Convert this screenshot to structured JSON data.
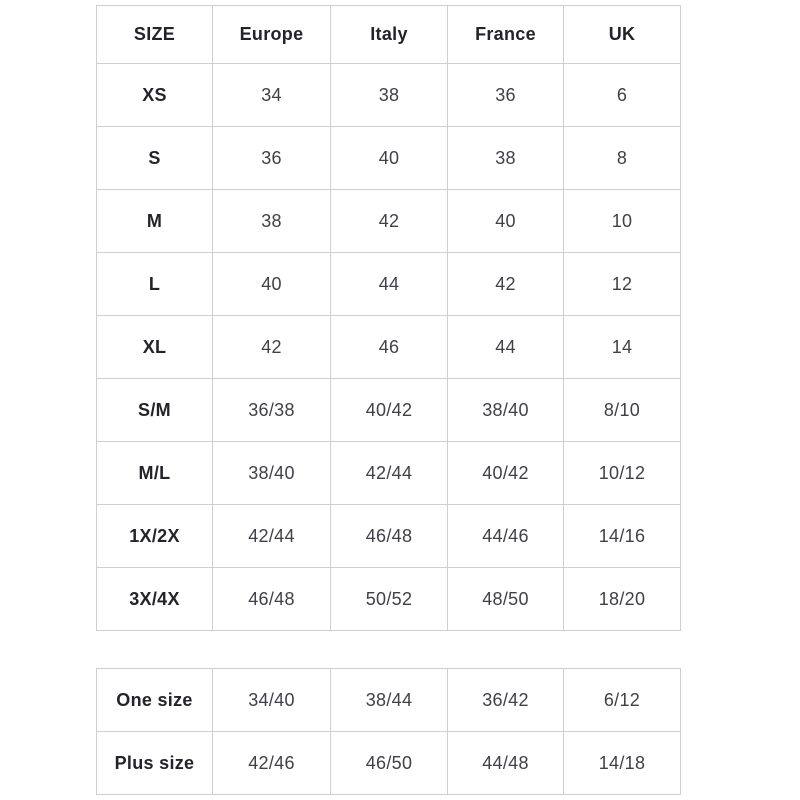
{
  "chart_data": [
    {
      "type": "table",
      "columns": [
        "SIZE",
        "Europe",
        "Italy",
        "France",
        "UK"
      ],
      "rows": [
        [
          "XS",
          "34",
          "38",
          "36",
          "6"
        ],
        [
          "S",
          "36",
          "40",
          "38",
          "8"
        ],
        [
          "M",
          "38",
          "42",
          "40",
          "10"
        ],
        [
          "L",
          "40",
          "44",
          "42",
          "12"
        ],
        [
          "XL",
          "42",
          "46",
          "44",
          "14"
        ],
        [
          "S/M",
          "36/38",
          "40/42",
          "38/40",
          "8/10"
        ],
        [
          "M/L",
          "38/40",
          "42/44",
          "40/42",
          "10/12"
        ],
        [
          "1X/2X",
          "42/44",
          "46/48",
          "44/46",
          "14/16"
        ],
        [
          "3X/4X",
          "46/48",
          "50/52",
          "48/50",
          "18/20"
        ]
      ]
    },
    {
      "type": "table",
      "rows": [
        [
          "One size",
          "34/40",
          "38/44",
          "36/42",
          "6/12"
        ],
        [
          "Plus size",
          "42/46",
          "46/50",
          "44/48",
          "14/18"
        ]
      ]
    }
  ],
  "colors": {
    "background": "#ffffff",
    "border": "#cfcfcf",
    "label_text": "#23232b",
    "value_text": "#40404a"
  }
}
